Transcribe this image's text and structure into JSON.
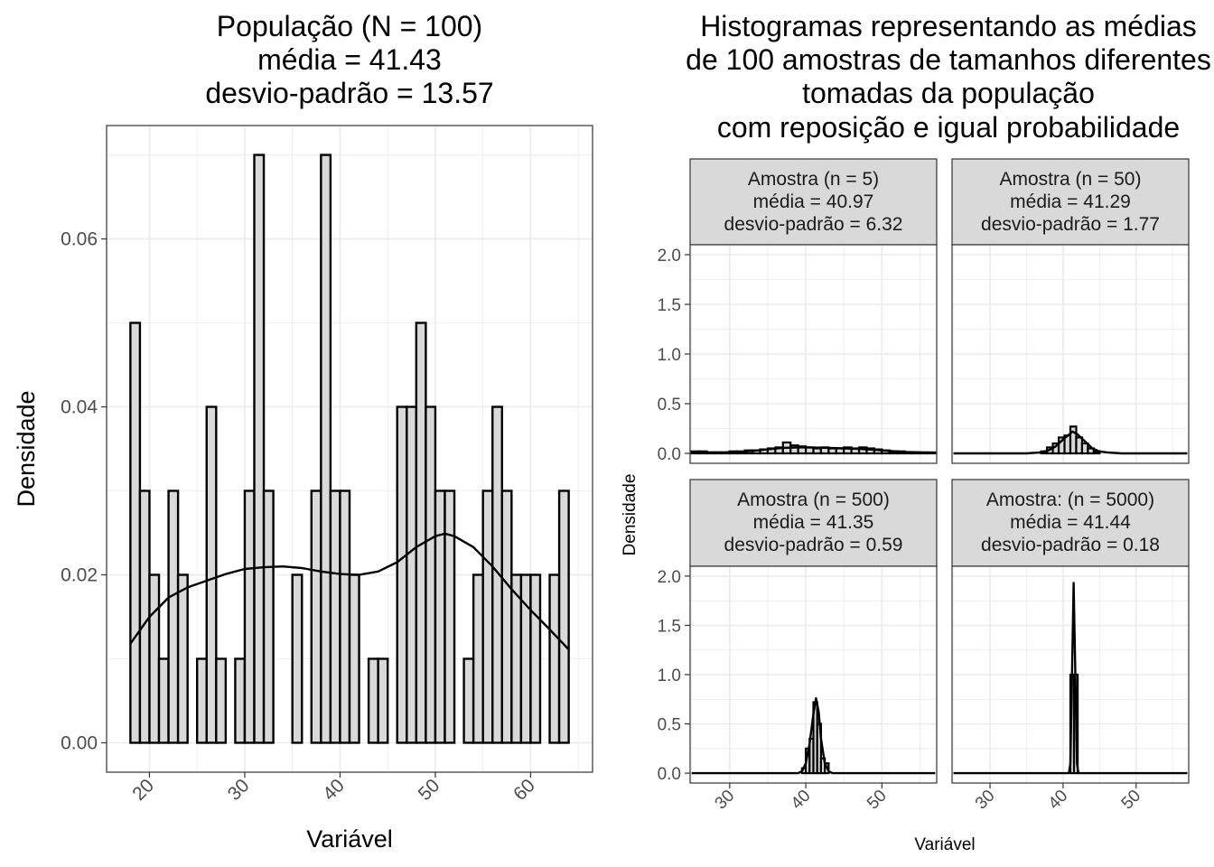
{
  "chart_data": [
    {
      "type": "bar",
      "title_lines": [
        "População (N = 100)",
        "média = 41.43",
        "desvio-padrão = 13.57"
      ],
      "xlabel": "Variável",
      "ylabel": "Densidade",
      "xlim": [
        15.5,
        66.5
      ],
      "ylim": [
        -0.0035,
        0.0735
      ],
      "x_ticks": [
        20,
        30,
        40,
        50,
        60
      ],
      "y_ticks": [
        "0.00",
        "0.02",
        "0.04",
        "0.06"
      ],
      "bin_start": 18,
      "bin_width": 1,
      "values": [
        0.05,
        0.03,
        0.02,
        0.01,
        0.03,
        0.02,
        0,
        0.01,
        0.04,
        0.01,
        0,
        0.01,
        0.03,
        0.07,
        0.03,
        0,
        0,
        0.02,
        0,
        0.03,
        0.07,
        0.03,
        0.03,
        0.02,
        0,
        0.01,
        0.01,
        0,
        0.04,
        0.04,
        0.05,
        0.04,
        0.03,
        0.03,
        0,
        0.01,
        0.02,
        0.03,
        0.04,
        0.03,
        0.02,
        0.02,
        0.02,
        0,
        0.02,
        0.03
      ],
      "density_curve": {
        "x": [
          18,
          20,
          22,
          24,
          26,
          28,
          30,
          32,
          34,
          36,
          38,
          40,
          42,
          44,
          46,
          48,
          50,
          51,
          52,
          54,
          56,
          58,
          60,
          62,
          64
        ],
        "y": [
          0.0118,
          0.015,
          0.0173,
          0.0185,
          0.0193,
          0.0201,
          0.0207,
          0.0209,
          0.021,
          0.0208,
          0.0204,
          0.0201,
          0.02,
          0.0204,
          0.0215,
          0.0233,
          0.0246,
          0.0249,
          0.0246,
          0.0233,
          0.021,
          0.0183,
          0.0158,
          0.0135,
          0.0111
        ]
      }
    },
    {
      "type": "bar",
      "title_lines": [
        "Histogramas representando as médias",
        "de 100 amostras de tamanhos diferentes",
        "tomadas da população",
        "com reposição e igual probabilidade"
      ],
      "xlabel": "Variável",
      "ylabel": "Densidade",
      "xlim": [
        24.8,
        57.2
      ],
      "ylim": [
        -0.1,
        2.1
      ],
      "x_ticks": [
        30,
        40,
        50
      ],
      "y_ticks": [
        "0.0",
        "0.5",
        "1.0",
        "1.5",
        "2.0"
      ],
      "panels": [
        {
          "strip": [
            "Amostra (n = 5)",
            "média = 40.97",
            "desvio-padrão = 6.32"
          ],
          "bin_start": 25,
          "bin_width": 1,
          "values": [
            0.02,
            0.02,
            0.01,
            0.01,
            0.01,
            0.02,
            0.02,
            0.03,
            0.03,
            0.04,
            0.05,
            0.06,
            0.11,
            0.08,
            0.07,
            0.06,
            0.05,
            0.06,
            0.05,
            0.05,
            0.06,
            0.05,
            0.06,
            0.05,
            0.04,
            0.03,
            0.02,
            0.02,
            0.01,
            0.01,
            0.01,
            0.01
          ],
          "density_curve": {
            "x": [
              25,
              27,
              29,
              31,
              33,
              35,
              37,
              39,
              41,
              43,
              45,
              47,
              49,
              51,
              53,
              55,
              57
            ],
            "y": [
              0.01,
              0.01,
              0.01,
              0.015,
              0.025,
              0.04,
              0.055,
              0.06,
              0.058,
              0.055,
              0.05,
              0.045,
              0.035,
              0.025,
              0.015,
              0.01,
              0.005
            ]
          }
        },
        {
          "strip": [
            "Amostra (n = 50)",
            "média = 41.29",
            "desvio-padrão = 1.77"
          ],
          "bin_start": 37,
          "bin_width": 0.8,
          "values": [
            0.02,
            0.06,
            0.1,
            0.16,
            0.18,
            0.27,
            0.16,
            0.1,
            0.05,
            0.02
          ],
          "density_curve": {
            "x": [
              25,
              35,
              37,
              38,
              39,
              40,
              41,
              41.3,
              42,
              43,
              44,
              45,
              46,
              48,
              57
            ],
            "y": [
              0,
              0,
              0.01,
              0.03,
              0.07,
              0.14,
              0.2,
              0.22,
              0.19,
              0.12,
              0.05,
              0.02,
              0.01,
              0,
              0
            ]
          }
        },
        {
          "strip": [
            "Amostra (n = 500)",
            "média = 41.35",
            "desvio-padrão = 0.59"
          ],
          "bin_start": 39.5,
          "bin_width": 0.5,
          "values": [
            0.05,
            0.25,
            0.35,
            0.72,
            0.5,
            0.15,
            0.1
          ],
          "density_curve": {
            "x": [
              25,
              39,
              39.5,
              40,
              40.5,
              41,
              41.35,
              41.7,
              42,
              42.5,
              43,
              43.5,
              57
            ],
            "y": [
              0,
              0,
              0.02,
              0.1,
              0.3,
              0.6,
              0.76,
              0.62,
              0.35,
              0.1,
              0.02,
              0,
              0
            ]
          }
        },
        {
          "strip": [
            "Amostra: (n = 5000)",
            "média = 41.44",
            "desvio-padrão = 0.18"
          ],
          "bin_start": 41.0,
          "bin_width": 0.5,
          "values": [
            1.0,
            1.0
          ],
          "density_curve": {
            "x": [
              25,
              40.8,
              41.0,
              41.2,
              41.44,
              41.7,
              41.9,
              42.1,
              57
            ],
            "y": [
              0,
              0,
              0.1,
              0.9,
              1.93,
              0.9,
              0.1,
              0,
              0
            ]
          }
        }
      ]
    }
  ],
  "colors": {
    "bar_fill": "#d9d9d9",
    "bar_stroke": "#000000",
    "grid": "#ebebeb",
    "panel_border": "#333333",
    "strip_fill": "#d9d9d9",
    "curve": "#000000"
  }
}
